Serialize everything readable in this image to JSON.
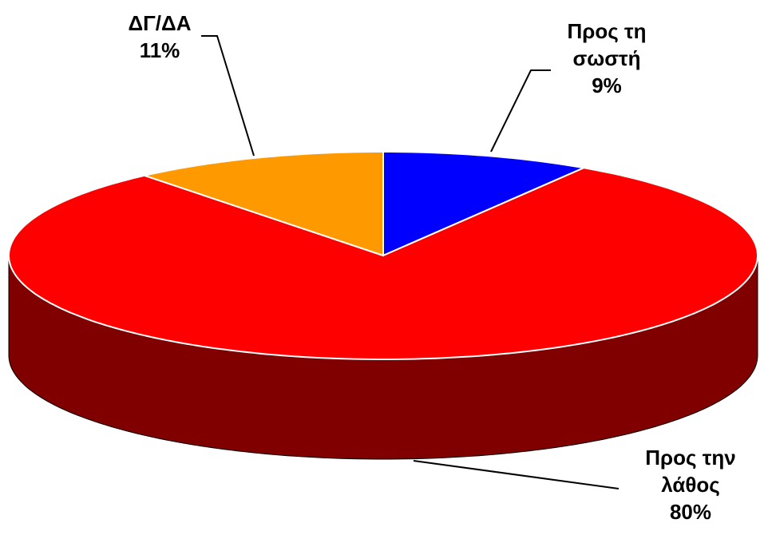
{
  "chart_data": {
    "type": "pie",
    "categories": [
      "Προς τη σωστή",
      "Προς την λάθος",
      "ΔΓ/ΔΑ"
    ],
    "values": [
      9,
      80,
      11
    ],
    "value_labels": [
      "9%",
      "80%",
      "11%"
    ],
    "colors": [
      "#0000ff",
      "#ff0000",
      "#ff9900"
    ]
  }
}
